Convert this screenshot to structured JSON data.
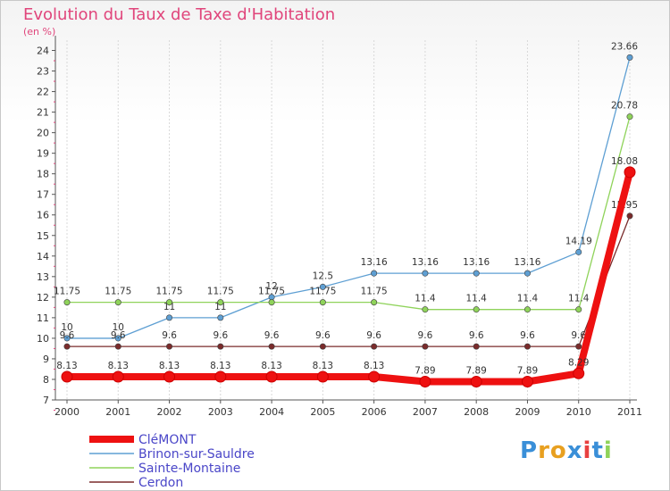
{
  "chart_data": {
    "type": "line",
    "title": "Evolution du Taux de Taxe d'Habitation",
    "subtitle": "(en %)",
    "categories": [
      "2000",
      "2001",
      "2002",
      "2003",
      "2004",
      "2005",
      "2006",
      "2007",
      "2008",
      "2009",
      "2010",
      "2011"
    ],
    "ylim": [
      7,
      24.5
    ],
    "yticks": [
      7,
      8,
      9,
      10,
      11,
      12,
      13,
      14,
      15,
      16,
      17,
      18,
      19,
      20,
      21,
      22,
      23,
      24
    ],
    "grid": "vertical",
    "legend_position": "bottom-left",
    "series": [
      {
        "name": "Brinon-sur-Sauldre",
        "color": "#5e9fd3",
        "values": [
          10,
          10,
          11,
          11,
          12,
          12.5,
          13.16,
          13.16,
          13.16,
          13.16,
          14.19,
          23.66
        ],
        "labels": [
          "10",
          "10",
          "11",
          "11",
          "12",
          "12.5",
          "13.16",
          "13.16",
          "13.16",
          "13.16",
          "14.19",
          "23.66"
        ]
      },
      {
        "name": "Sainte-Montaine",
        "color": "#8fd35a",
        "values": [
          11.75,
          11.75,
          11.75,
          11.75,
          11.75,
          11.75,
          11.75,
          11.4,
          11.4,
          11.4,
          11.4,
          20.78
        ],
        "labels": [
          "11.75",
          "11.75",
          "11.75",
          "11.75",
          "11.75",
          "11.75",
          "11.75",
          "11.4",
          "11.4",
          "11.4",
          "11.4",
          "20.78"
        ]
      },
      {
        "name": "Cerdon",
        "color": "#7a2b2b",
        "values": [
          9.6,
          9.6,
          9.6,
          9.6,
          9.6,
          9.6,
          9.6,
          9.6,
          9.6,
          9.6,
          9.6,
          15.95
        ],
        "labels": [
          "9.6",
          "9.6",
          "9.6",
          "9.6",
          "9.6",
          "9.6",
          "9.6",
          "9.6",
          "9.6",
          "9.6",
          "9.6",
          "15.95"
        ]
      },
      {
        "name": "CléMONT",
        "color": "#ee1111",
        "values": [
          8.13,
          8.13,
          8.13,
          8.13,
          8.13,
          8.13,
          8.13,
          7.89,
          7.89,
          7.89,
          8.29,
          18.08
        ],
        "labels": [
          "8.13",
          "8.13",
          "8.13",
          "8.13",
          "8.13",
          "8.13",
          "8.13",
          "7.89",
          "7.89",
          "7.89",
          "8.29",
          "18.08"
        ]
      }
    ],
    "legend": [
      "CléMONT",
      "Brinon-sur-Sauldre",
      "Sainte-Montaine",
      "Cerdon"
    ]
  },
  "brand": {
    "letters": [
      "P",
      "r",
      "o",
      "x",
      "i",
      "t",
      "i"
    ],
    "colors": [
      "#3a8fd8",
      "#e8a020",
      "#e8a020",
      "#3a8fd8",
      "#e84040",
      "#3a8fd8",
      "#8fd35a"
    ]
  }
}
